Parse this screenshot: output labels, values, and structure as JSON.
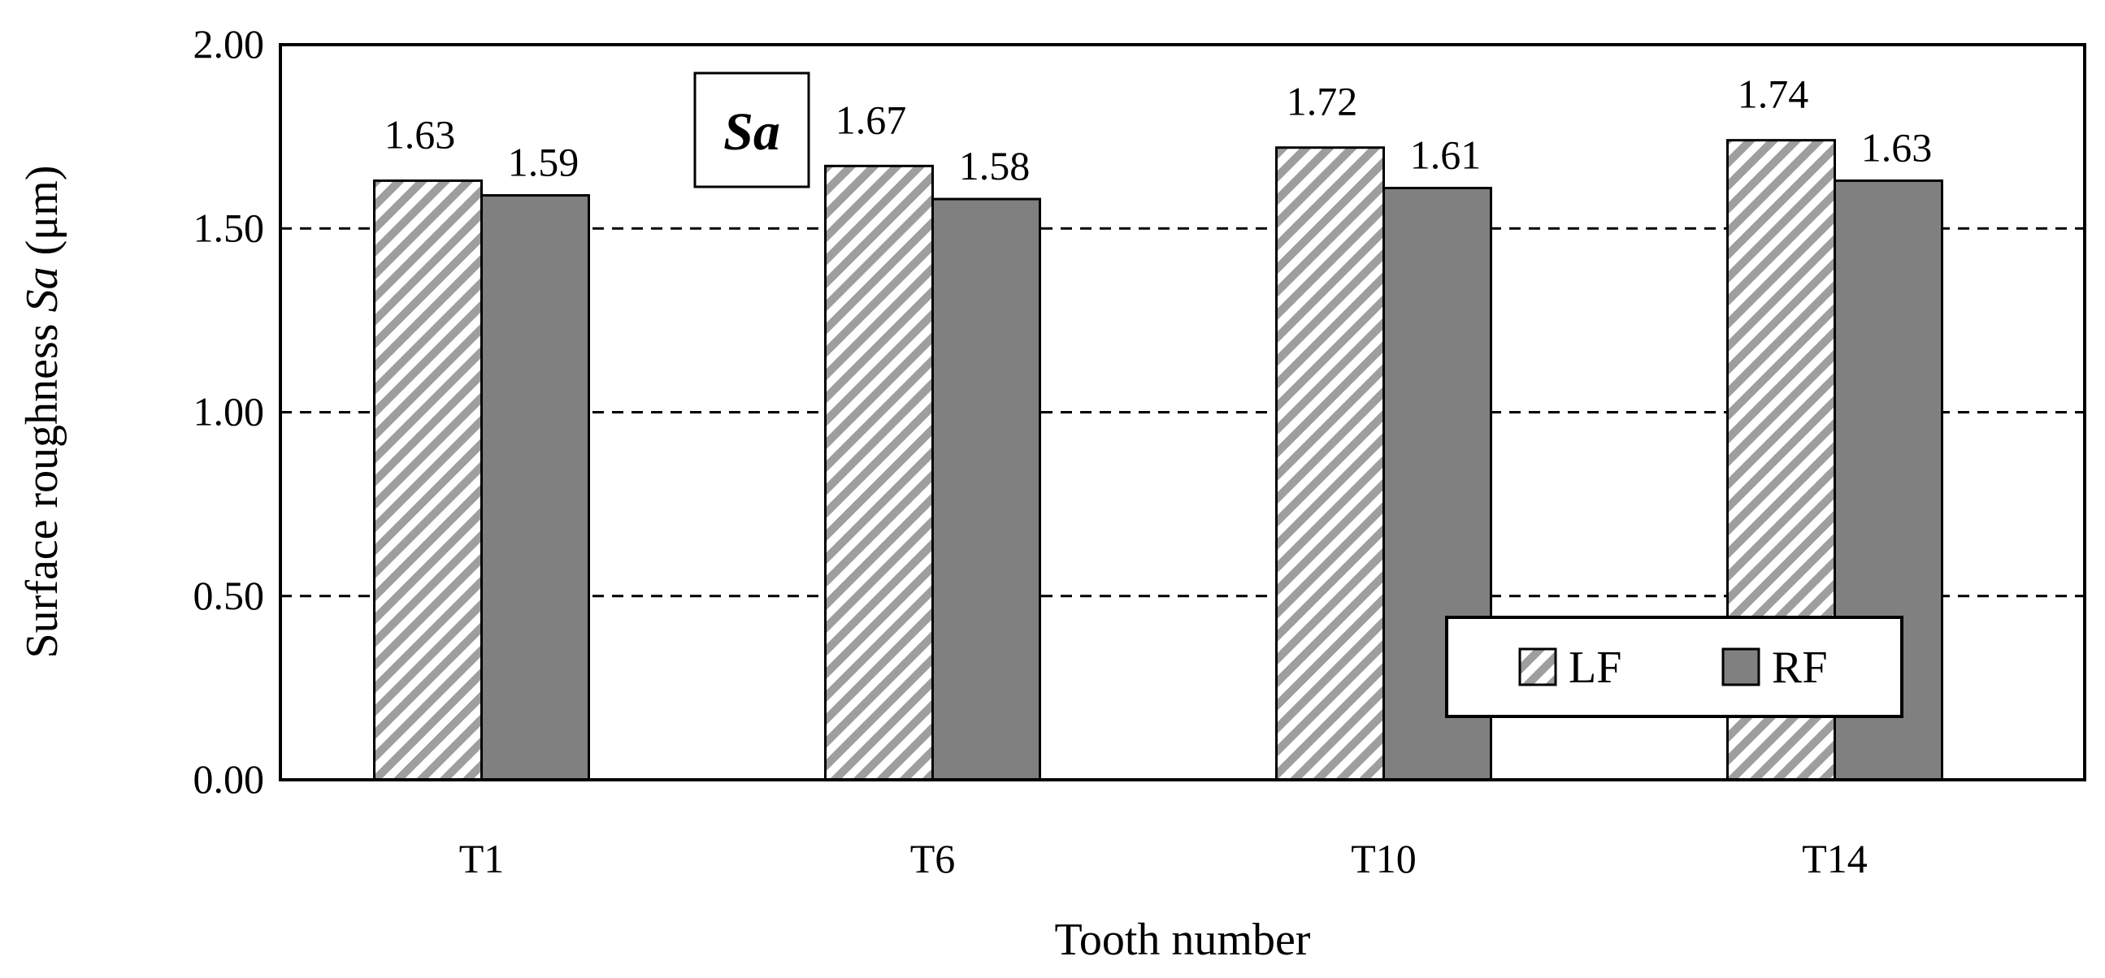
{
  "chart_data": {
    "type": "bar",
    "inset_label": "Sa",
    "categories": [
      "T1",
      "T6",
      "T10",
      "T14"
    ],
    "series": [
      {
        "name": "LF",
        "values": [
          1.63,
          1.67,
          1.72,
          1.74
        ],
        "fill": "hatched",
        "color": "#9e9e9e"
      },
      {
        "name": "RF",
        "values": [
          1.59,
          1.58,
          1.61,
          1.63
        ],
        "fill": "solid",
        "color": "#808080"
      }
    ],
    "value_labels": [
      [
        "1.63",
        "1.67",
        "1.72",
        "1.74"
      ],
      [
        "1.59",
        "1.58",
        "1.61",
        "1.63"
      ]
    ],
    "xlabel": "Tooth number",
    "ylabel_prefix": "Surface roughness ",
    "ylabel_italic": "Sa",
    "ylabel_suffix": " (μm)",
    "ylim": [
      0,
      2
    ],
    "yticks": [
      "0.00",
      "0.50",
      "1.00",
      "1.50",
      "2.00"
    ],
    "ytick_values": [
      0,
      0.5,
      1.0,
      1.5,
      2.0
    ],
    "grid": "horizontal dashed",
    "legend_position": "bottom-right"
  }
}
